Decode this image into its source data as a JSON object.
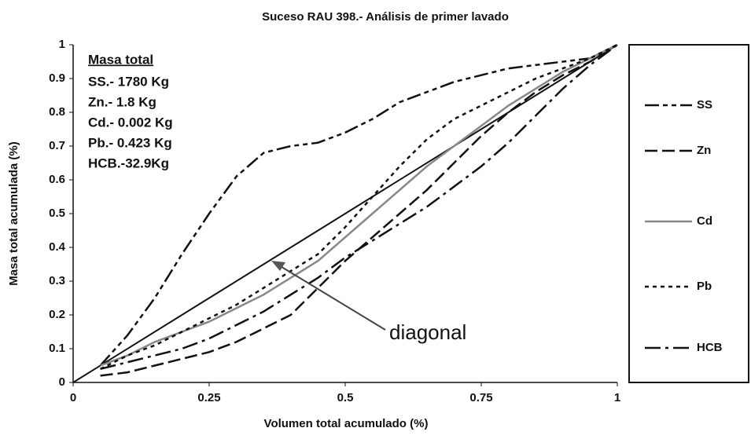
{
  "chart_data": {
    "type": "line",
    "title": "Suceso RAU 398.- Análisis de primer lavado",
    "x_label": "Volumen total acumulado (%)",
    "y_label": "Masa total acumulada (%)",
    "xlim": [
      0,
      1
    ],
    "ylim": [
      0,
      1
    ],
    "xticks": [
      0,
      0.25,
      0.5,
      0.75,
      1
    ],
    "yticks": [
      0,
      0.1,
      0.2,
      0.3,
      0.4,
      0.5,
      0.6,
      0.7,
      0.8,
      0.9,
      1
    ],
    "x": [
      0.05,
      0.1,
      0.15,
      0.2,
      0.25,
      0.3,
      0.35,
      0.4,
      0.45,
      0.5,
      0.55,
      0.6,
      0.65,
      0.7,
      0.75,
      0.8,
      0.85,
      0.9,
      0.95,
      1
    ],
    "series": [
      {
        "name": "SS",
        "color": "#111111",
        "dash": "18 5 6 5 6 5",
        "values": [
          0.05,
          0.14,
          0.25,
          0.38,
          0.5,
          0.61,
          0.68,
          0.7,
          0.71,
          0.74,
          0.78,
          0.83,
          0.86,
          0.89,
          0.91,
          0.93,
          0.94,
          0.95,
          0.96,
          1
        ]
      },
      {
        "name": "Zn",
        "color": "#111111",
        "dash": "16 6",
        "values": [
          0.02,
          0.03,
          0.05,
          0.07,
          0.09,
          0.12,
          0.16,
          0.2,
          0.28,
          0.36,
          0.43,
          0.5,
          0.57,
          0.65,
          0.73,
          0.8,
          0.86,
          0.91,
          0.95,
          1
        ]
      },
      {
        "name": "Cd",
        "color": "#888888",
        "dash": "none",
        "values": [
          0.05,
          0.08,
          0.12,
          0.15,
          0.18,
          0.22,
          0.26,
          0.31,
          0.36,
          0.43,
          0.5,
          0.57,
          0.64,
          0.7,
          0.76,
          0.82,
          0.87,
          0.92,
          0.96,
          1
        ]
      },
      {
        "name": "Pb",
        "color": "#111111",
        "dash": "5 5",
        "values": [
          0.04,
          0.08,
          0.11,
          0.15,
          0.19,
          0.23,
          0.28,
          0.33,
          0.38,
          0.46,
          0.55,
          0.64,
          0.72,
          0.78,
          0.82,
          0.86,
          0.9,
          0.93,
          0.96,
          1
        ]
      },
      {
        "name": "HCB",
        "color": "#111111",
        "dash": "20 6 4 6",
        "values": [
          0.04,
          0.06,
          0.08,
          0.1,
          0.13,
          0.17,
          0.21,
          0.26,
          0.31,
          0.37,
          0.42,
          0.47,
          0.52,
          0.58,
          0.64,
          0.71,
          0.79,
          0.87,
          0.94,
          1
        ]
      }
    ],
    "diagonal": {
      "label": "diagonal",
      "x": [
        0,
        1
      ],
      "values": [
        0,
        1
      ]
    },
    "text_box": {
      "title": "Masa total",
      "lines": [
        "SS.- 1780 Kg",
        "Zn.- 1.8 Kg",
        "Cd.- 0.002 Kg",
        "Pb.- 0.423 Kg",
        "HCB.-32.9Kg"
      ]
    }
  }
}
